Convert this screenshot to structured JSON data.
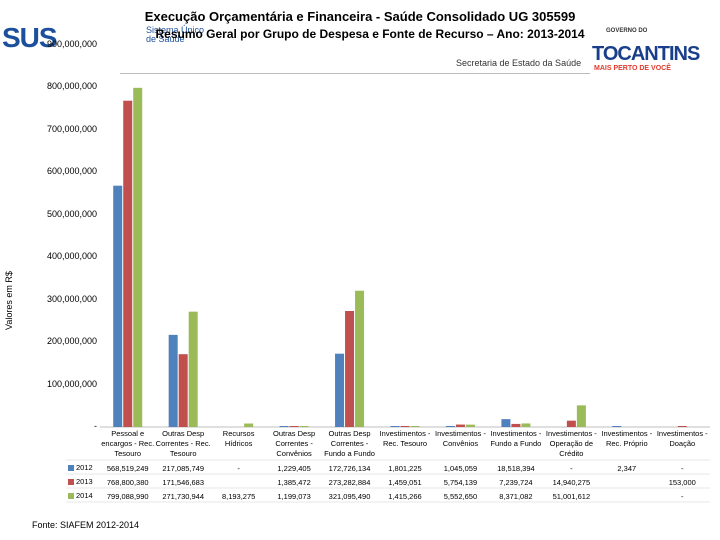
{
  "header": {
    "title_line1": "Execução Orçamentária e Financeira  -  Saúde Consolidado UG 305599",
    "title_line2": "Resumo Geral por Grupo de Despesa e Fonte de Recurso – Ano: 2013-2014",
    "logo_sus": "SUS",
    "logo_sus_sub": "Sistema Único de Saúde",
    "gov_label": "GOVERNO DO",
    "tocantins": "TOCANTINS",
    "slogan": "MAIS PERTO DE VOCÊ",
    "secretaria": "Secretaria de Estado da Saúde"
  },
  "colors": {
    "s2012": "#4f81bd",
    "s2013": "#c0504d",
    "s2014": "#9bbb59"
  },
  "source": "Fonte: SIAFEM 2012-2014",
  "chart_data": {
    "type": "bar",
    "ylabel": "Valores em R$",
    "ylim": [
      0,
      900000000
    ],
    "yticks": [
      "-",
      "100,000,000",
      "200,000,000",
      "300,000,000",
      "400,000,000",
      "500,000,000",
      "600,000,000",
      "700,000,000",
      "800,000,000",
      "900,000,000"
    ],
    "categories": [
      "Pessoal e encargos - Rec. Tesouro",
      "Outras Desp Correntes - Rec. Tesouro",
      "Recursos Hídricos",
      "Outras Desp Correntes - Convênios",
      "Outras Desp Correntes - Fundo a Fundo",
      "Investimentos - Rec. Tesouro",
      "Investimentos - Convênios",
      "Investimentos - Fundo a Fundo",
      "Investimentos - Operação de Crédito",
      "Investimentos - Rec. Próprio",
      "Investimentos - Doação"
    ],
    "series": [
      {
        "name": "2012",
        "values": [
          568519249,
          217085749,
          0,
          1229405,
          172726134,
          1801225,
          1045059,
          18518394,
          0,
          2347,
          0
        ],
        "labels": [
          "568,519,249",
          "217,085,749",
          "-",
          "1,229,405",
          "172,726,134",
          "1,801,225",
          "1,045,059",
          "18,518,394",
          "-",
          "2,347",
          "-"
        ]
      },
      {
        "name": "2013",
        "values": [
          768800380,
          171546683,
          0,
          1385472,
          273282884,
          1459051,
          5754139,
          7239724,
          14940275,
          0,
          153000
        ],
        "labels": [
          "768,800,380",
          "171,546,683",
          "",
          "1,385,472",
          "273,282,884",
          "1,459,051",
          "5,754,139",
          "7,239,724",
          "14,940,275",
          "",
          "153,000"
        ]
      },
      {
        "name": "2014",
        "values": [
          799088990,
          271730944,
          8193275,
          1199073,
          321095490,
          1415266,
          5552650,
          8371082,
          51001612,
          0,
          0
        ],
        "labels": [
          "799,088,990",
          "271,730,944",
          "8,193,275",
          "1,199,073",
          "321,095,490",
          "1,415,266",
          "5,552,650",
          "8,371,082",
          "51,001,612",
          "",
          "-"
        ]
      }
    ]
  }
}
